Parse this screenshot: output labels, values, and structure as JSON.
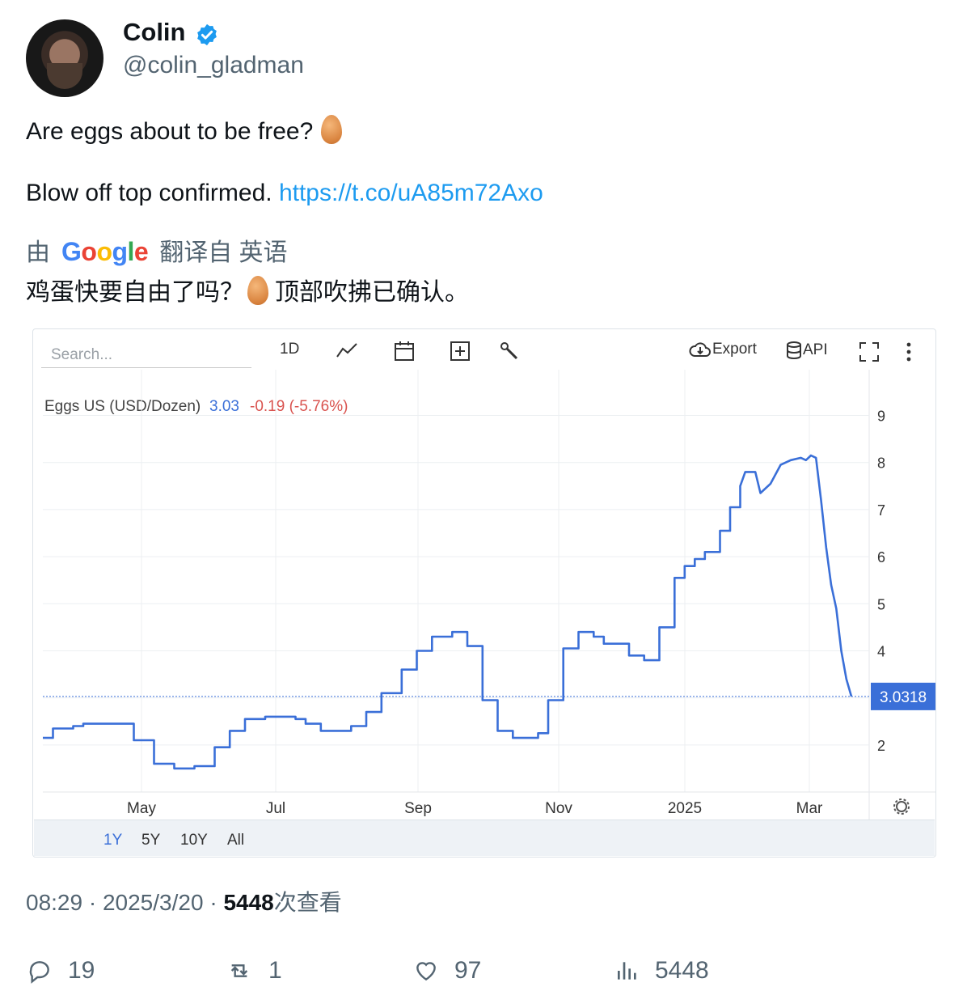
{
  "tweet": {
    "author_name": "Colin",
    "author_handle": "@colin_gladman",
    "line1": "Are eggs about to be free?",
    "line2_text": "Blow off top confirmed.",
    "line2_link": "https://t.co/uA85m72Axo",
    "translate_prefix": "由",
    "translate_brand": "Google",
    "translate_suffix": "翻译自 英语",
    "translated_a": "鸡蛋快要自由了吗？",
    "translated_b": "顶部吹拂已确认。",
    "time": "08:29",
    "date": "2025/3/20",
    "views_count": "5448",
    "views_label": "次查看",
    "replies": "19",
    "retweets": "1",
    "likes": "97",
    "analytics": "5448"
  },
  "widget": {
    "search_placeholder": "Search...",
    "interval": "1D",
    "export_label": "Export",
    "api_label": "API",
    "series_name": "Eggs US (USD/Dozen)",
    "last_value": "3.03",
    "change": "-0.19 (-5.76%)",
    "price_tag": "3.0318",
    "periods": [
      "1Y",
      "5Y",
      "10Y",
      "All"
    ],
    "active_period": "1Y"
  },
  "colors": {
    "line": "#3a6fd8",
    "negative": "#d9534f",
    "accent": "#1d9bf0"
  },
  "chart_data": {
    "type": "line",
    "title": "Eggs US (USD/Dozen)",
    "xlabel": "",
    "ylabel": "",
    "ylim": [
      1.0,
      9.8
    ],
    "y_ticks": [
      2,
      3,
      4,
      5,
      6,
      7,
      8,
      9
    ],
    "x_tick_labels": [
      "May",
      "Jul",
      "Sep",
      "Nov",
      "2025",
      "Mar"
    ],
    "grid": true,
    "series": [
      {
        "values": [
          [
            0.0,
            2.15
          ],
          [
            0.02,
            2.15
          ],
          [
            0.02,
            2.35
          ],
          [
            0.06,
            2.35
          ],
          [
            0.06,
            2.4
          ],
          [
            0.08,
            2.4
          ],
          [
            0.08,
            2.45
          ],
          [
            0.18,
            2.45
          ],
          [
            0.18,
            2.1
          ],
          [
            0.22,
            2.1
          ],
          [
            0.22,
            1.6
          ],
          [
            0.26,
            1.6
          ],
          [
            0.26,
            1.5
          ],
          [
            0.3,
            1.5
          ],
          [
            0.3,
            1.55
          ],
          [
            0.34,
            1.55
          ],
          [
            0.34,
            1.95
          ],
          [
            0.37,
            1.95
          ],
          [
            0.37,
            2.3
          ],
          [
            0.4,
            2.3
          ],
          [
            0.4,
            2.55
          ],
          [
            0.44,
            2.55
          ],
          [
            0.44,
            2.6
          ],
          [
            0.5,
            2.6
          ],
          [
            0.5,
            2.55
          ],
          [
            0.52,
            2.55
          ],
          [
            0.52,
            2.45
          ],
          [
            0.55,
            2.45
          ],
          [
            0.55,
            2.3
          ],
          [
            0.61,
            2.3
          ],
          [
            0.61,
            2.4
          ],
          [
            0.64,
            2.4
          ],
          [
            0.64,
            2.7
          ],
          [
            0.67,
            2.7
          ],
          [
            0.67,
            3.1
          ],
          [
            0.71,
            3.1
          ],
          [
            0.71,
            3.6
          ],
          [
            0.74,
            3.6
          ],
          [
            0.74,
            4.0
          ],
          [
            0.77,
            4.0
          ],
          [
            0.77,
            4.3
          ],
          [
            0.81,
            4.3
          ],
          [
            0.81,
            4.4
          ],
          [
            0.84,
            4.4
          ],
          [
            0.84,
            4.1
          ],
          [
            0.87,
            4.1
          ],
          [
            0.87,
            2.95
          ],
          [
            0.9,
            2.95
          ],
          [
            0.9,
            2.3
          ],
          [
            0.93,
            2.3
          ],
          [
            0.93,
            2.15
          ],
          [
            0.98,
            2.15
          ],
          [
            0.98,
            2.25
          ],
          [
            1.0,
            2.25
          ],
          [
            1.0,
            2.95
          ],
          [
            1.03,
            2.95
          ],
          [
            1.03,
            4.05
          ],
          [
            1.06,
            4.05
          ],
          [
            1.06,
            4.4
          ],
          [
            1.09,
            4.4
          ],
          [
            1.09,
            4.3
          ],
          [
            1.11,
            4.3
          ],
          [
            1.11,
            4.15
          ],
          [
            1.16,
            4.15
          ],
          [
            1.16,
            3.9
          ],
          [
            1.19,
            3.9
          ],
          [
            1.19,
            3.8
          ],
          [
            1.22,
            3.8
          ],
          [
            1.22,
            4.5
          ],
          [
            1.25,
            4.5
          ],
          [
            1.25,
            5.55
          ],
          [
            1.27,
            5.55
          ],
          [
            1.27,
            5.8
          ],
          [
            1.29,
            5.8
          ],
          [
            1.29,
            5.95
          ],
          [
            1.31,
            5.95
          ],
          [
            1.31,
            6.1
          ],
          [
            1.34,
            6.1
          ],
          [
            1.34,
            6.55
          ],
          [
            1.36,
            6.55
          ],
          [
            1.36,
            7.05
          ],
          [
            1.38,
            7.05
          ],
          [
            1.38,
            7.5
          ],
          [
            1.39,
            7.8
          ],
          [
            1.41,
            7.8
          ],
          [
            1.42,
            7.35
          ],
          [
            1.44,
            7.55
          ],
          [
            1.46,
            7.95
          ],
          [
            1.48,
            8.05
          ],
          [
            1.5,
            8.1
          ],
          [
            1.51,
            8.05
          ],
          [
            1.52,
            8.15
          ],
          [
            1.53,
            8.1
          ],
          [
            1.54,
            7.2
          ],
          [
            1.55,
            6.2
          ],
          [
            1.56,
            5.4
          ],
          [
            1.57,
            4.9
          ],
          [
            1.58,
            4.0
          ],
          [
            1.59,
            3.4
          ],
          [
            1.6,
            3.03
          ]
        ]
      }
    ]
  }
}
